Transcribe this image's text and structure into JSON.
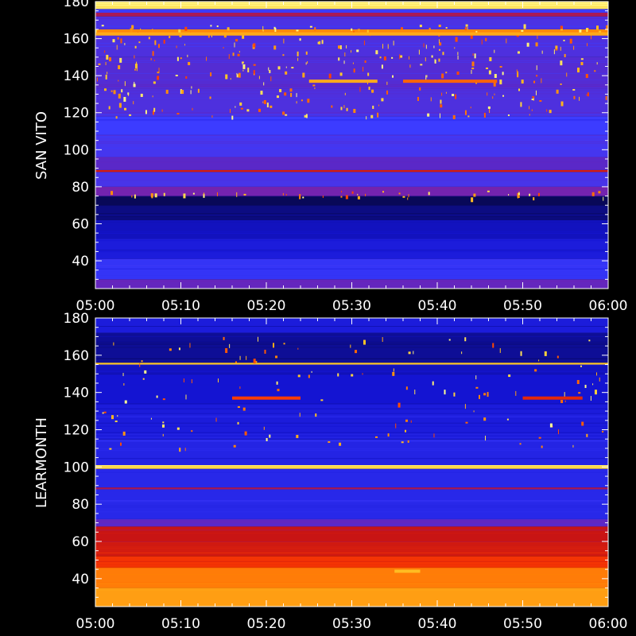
{
  "chart_data": [
    {
      "type": "heatmap",
      "ylabel": "SAN VITO",
      "x_ticks": [
        "05:00",
        "05:10",
        "05:20",
        "05:30",
        "05:40",
        "05:50",
        "06:00"
      ],
      "xlim": [
        "05:00",
        "06:00"
      ],
      "y_ticks": [
        40,
        60,
        80,
        100,
        120,
        140,
        160,
        180
      ],
      "ylim": [
        25,
        180
      ],
      "colormap": [
        "#000000",
        "#0a0a6e",
        "#1414d2",
        "#3c3cff",
        "#5a28c8",
        "#8c1e96",
        "#c81414",
        "#ff3c00",
        "#ff8c0a",
        "#ffc828",
        "#ffff96"
      ],
      "bands": [
        {
          "from": 25,
          "to": 30,
          "level": 0.42
        },
        {
          "from": 30,
          "to": 41,
          "level": 0.28
        },
        {
          "from": 41,
          "to": 52,
          "level": 0.22
        },
        {
          "from": 52,
          "to": 62,
          "level": 0.18
        },
        {
          "from": 62,
          "to": 70,
          "level": 0.12
        },
        {
          "from": 70,
          "to": 75,
          "level": 0.08
        },
        {
          "from": 75,
          "to": 80,
          "level": 0.45
        },
        {
          "from": 80,
          "to": 88,
          "level": 0.34
        },
        {
          "from": 88,
          "to": 89,
          "level": 0.62
        },
        {
          "from": 89,
          "to": 96,
          "level": 0.4
        },
        {
          "from": 96,
          "to": 108,
          "level": 0.33
        },
        {
          "from": 108,
          "to": 118,
          "level": 0.3
        },
        {
          "from": 118,
          "to": 133,
          "level": 0.36
        },
        {
          "from": 133,
          "to": 150,
          "level": 0.38
        },
        {
          "from": 150,
          "to": 162,
          "level": 0.36
        },
        {
          "from": 162,
          "to": 165,
          "level": 0.8
        },
        {
          "from": 165,
          "to": 172,
          "level": 0.35
        },
        {
          "from": 172,
          "to": 174,
          "level": 0.55
        },
        {
          "from": 174,
          "to": 176,
          "level": 0.3
        },
        {
          "from": 176,
          "to": 180,
          "level": 0.95
        }
      ],
      "features": [
        {
          "y": 137,
          "from": "05:25",
          "to": "05:33",
          "level": 0.85
        },
        {
          "y": 137,
          "from": "05:36",
          "to": "05:47",
          "level": 0.75
        },
        {
          "y": 162.5,
          "from": "05:00",
          "to": "06:00",
          "level": 0.85
        }
      ]
    },
    {
      "type": "heatmap",
      "ylabel": "LEARMONTH",
      "x_ticks": [
        "05:00",
        "05:10",
        "05:20",
        "05:30",
        "05:40",
        "05:50",
        "06:00"
      ],
      "xlim": [
        "05:00",
        "06:00"
      ],
      "y_ticks": [
        40,
        60,
        80,
        100,
        120,
        140,
        160,
        180
      ],
      "ylim": [
        25,
        180
      ],
      "colormap": [
        "#000000",
        "#0a0a6e",
        "#1414d2",
        "#3c3cff",
        "#5a28c8",
        "#8c1e96",
        "#c81414",
        "#ff3c00",
        "#ff8c0a",
        "#ffc828",
        "#ffff96"
      ],
      "bands": [
        {
          "from": 25,
          "to": 35,
          "level": 0.83
        },
        {
          "from": 35,
          "to": 46,
          "level": 0.78
        },
        {
          "from": 46,
          "to": 52,
          "level": 0.68
        },
        {
          "from": 52,
          "to": 60,
          "level": 0.62
        },
        {
          "from": 60,
          "to": 68,
          "level": 0.6
        },
        {
          "from": 68,
          "to": 72,
          "level": 0.4
        },
        {
          "from": 72,
          "to": 88,
          "level": 0.25
        },
        {
          "from": 88,
          "to": 89,
          "level": 0.55
        },
        {
          "from": 89,
          "to": 99,
          "level": 0.25
        },
        {
          "from": 99,
          "to": 101,
          "level": 0.93
        },
        {
          "from": 101,
          "to": 115,
          "level": 0.24
        },
        {
          "from": 115,
          "to": 134,
          "level": 0.22
        },
        {
          "from": 134,
          "to": 150,
          "level": 0.2
        },
        {
          "from": 150,
          "to": 155,
          "level": 0.18
        },
        {
          "from": 155,
          "to": 156,
          "level": 0.9
        },
        {
          "from": 156,
          "to": 172,
          "level": 0.14
        },
        {
          "from": 172,
          "to": 180,
          "level": 0.22
        }
      ],
      "features": [
        {
          "y": 137,
          "from": "05:16",
          "to": "05:24",
          "level": 0.7
        },
        {
          "y": 137,
          "from": "05:50",
          "to": "05:57",
          "level": 0.65
        },
        {
          "y": 44,
          "from": "05:35",
          "to": "05:38",
          "level": 0.88
        }
      ]
    }
  ]
}
